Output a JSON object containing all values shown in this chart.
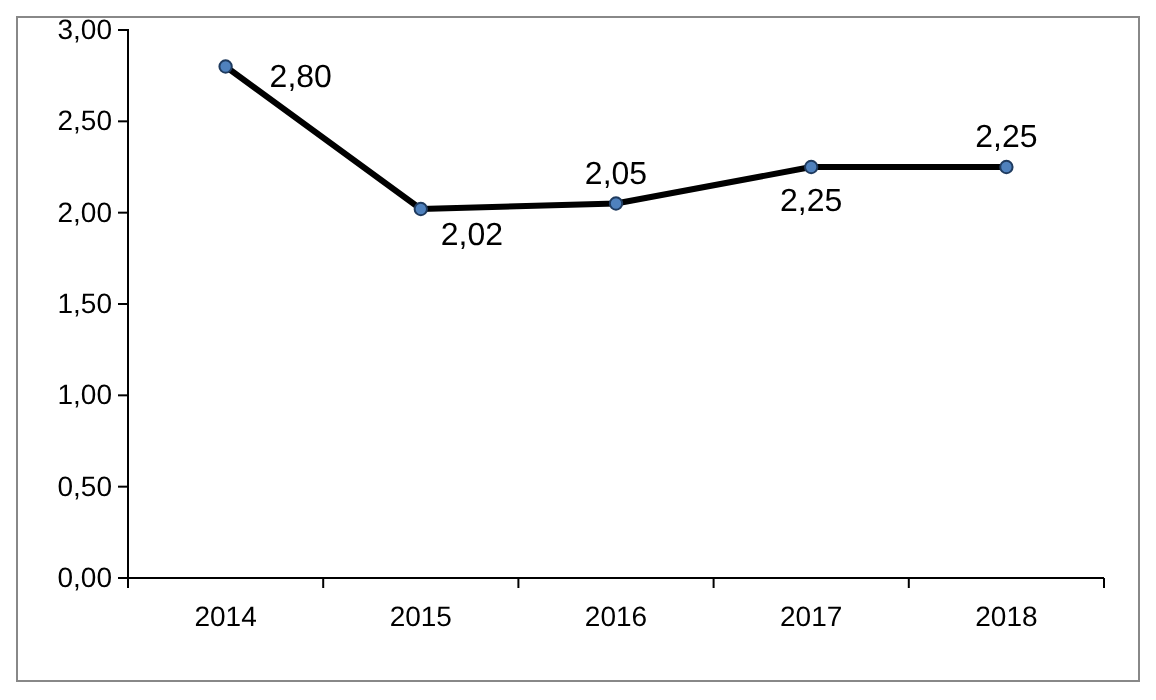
{
  "chart_data": {
    "type": "line",
    "categories": [
      "2014",
      "2015",
      "2016",
      "2017",
      "2018"
    ],
    "series": [
      {
        "color": "#000000",
        "values": [
          2.8,
          2.02,
          2.05,
          2.25,
          2.25
        ],
        "value_labels": [
          "2,80",
          "2,02",
          "2,05",
          "2,25",
          "2,25"
        ]
      }
    ],
    "ylim": [
      0,
      3
    ],
    "yticks": [
      {
        "value": 0,
        "label": "0,00"
      },
      {
        "value": 0.5,
        "label": "0,50"
      },
      {
        "value": 1,
        "label": "1,00"
      },
      {
        "value": 1.5,
        "label": "1,50"
      },
      {
        "value": 2,
        "label": "2,00"
      },
      {
        "value": 2.5,
        "label": "2,50"
      },
      {
        "value": 3,
        "label": "3,00"
      }
    ],
    "marker": "circle",
    "line_style": "solid"
  }
}
